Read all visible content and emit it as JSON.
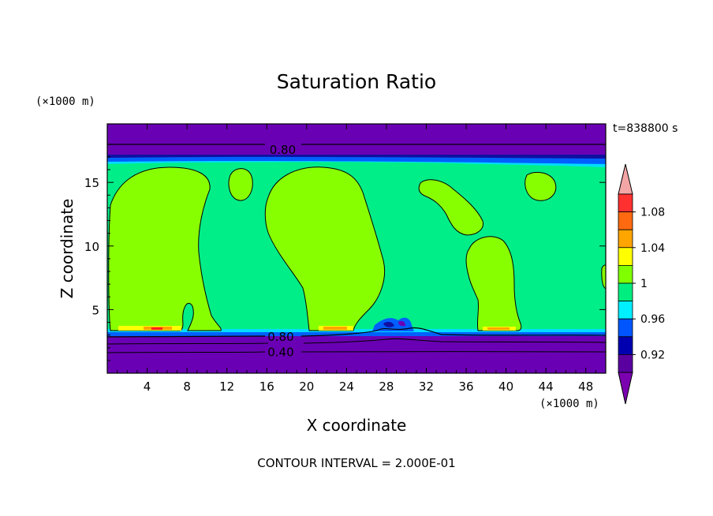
{
  "chart_data": {
    "type": "heatmap",
    "title": "Saturation Ratio",
    "xlabel": "X coordinate",
    "ylabel": "Z coordinate",
    "x_unit": "(×1000 m)",
    "z_unit": "(×1000 m)",
    "time_label": "t=838800 s",
    "footer": "CONTOUR INTERVAL = 2.000E-01",
    "xlim": [
      0,
      50
    ],
    "ylim": [
      0,
      19.6
    ],
    "x_ticks": [
      "4",
      "8",
      "12",
      "16",
      "20",
      "24",
      "28",
      "32",
      "36",
      "40",
      "44",
      "48"
    ],
    "x_tick_values": [
      4,
      8,
      12,
      16,
      20,
      24,
      28,
      32,
      36,
      40,
      44,
      48
    ],
    "y_ticks": [
      "5",
      "10",
      "15"
    ],
    "y_tick_values": [
      5,
      10,
      15
    ],
    "contour_labels": [
      {
        "text": "0.80",
        "x": 17.6,
        "z": 17.6
      },
      {
        "text": "0.80",
        "x": 17.4,
        "z": 2.9
      },
      {
        "text": "0.40",
        "x": 17.4,
        "z": 1.7
      }
    ],
    "colorbar": {
      "labels": [
        "1.08",
        "1.04",
        "1",
        "0.96",
        "0.92"
      ],
      "colors": [
        "#ff3030",
        "#ff6a10",
        "#ffa500",
        "#ffff00",
        "#80ff00",
        "#00ee80",
        "#00f0ff",
        "#0055ff",
        "#0000b0",
        "#5a00a0"
      ],
      "over_color": "#f4a6a6",
      "under_color": "#7a00b0"
    },
    "regions": {
      "background_level": "0.98-1.00",
      "high_level": "1.00-1.02",
      "low_level": "<0.92"
    }
  },
  "colors": {
    "purple": "#6a00b4",
    "green": "#00ee88",
    "lime": "#88ff00",
    "cyan": "#00ddff",
    "blue": "#0060ff",
    "darkblue": "#1010a0",
    "yellow": "#ffff00",
    "orange": "#ffa500",
    "red": "#ff2020"
  }
}
